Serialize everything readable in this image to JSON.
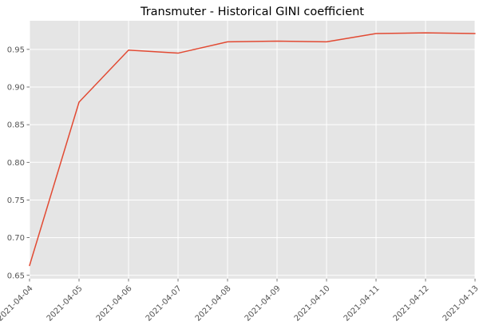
{
  "chart_data": {
    "type": "line",
    "title": "Transmuter - Historical GINI coefficient",
    "xlabel": "",
    "ylabel": "",
    "x": [
      "2021-04-04",
      "2021-04-05",
      "2021-04-06",
      "2021-04-07",
      "2021-04-08",
      "2021-04-09",
      "2021-04-10",
      "2021-04-11",
      "2021-04-12",
      "2021-04-13"
    ],
    "series": [
      {
        "values": [
          0.663,
          0.88,
          0.949,
          0.945,
          0.96,
          0.961,
          0.96,
          0.971,
          0.972,
          0.971
        ]
      }
    ],
    "yticks": [
      "0.65",
      "0.70",
      "0.75",
      "0.80",
      "0.85",
      "0.90",
      "0.95"
    ],
    "ylim": [
      0.6455,
      0.988
    ],
    "grid": true,
    "legend": "none",
    "colors": {
      "line": "#e24a33",
      "background": "#e5e5e5",
      "grid": "#ffffff"
    }
  }
}
